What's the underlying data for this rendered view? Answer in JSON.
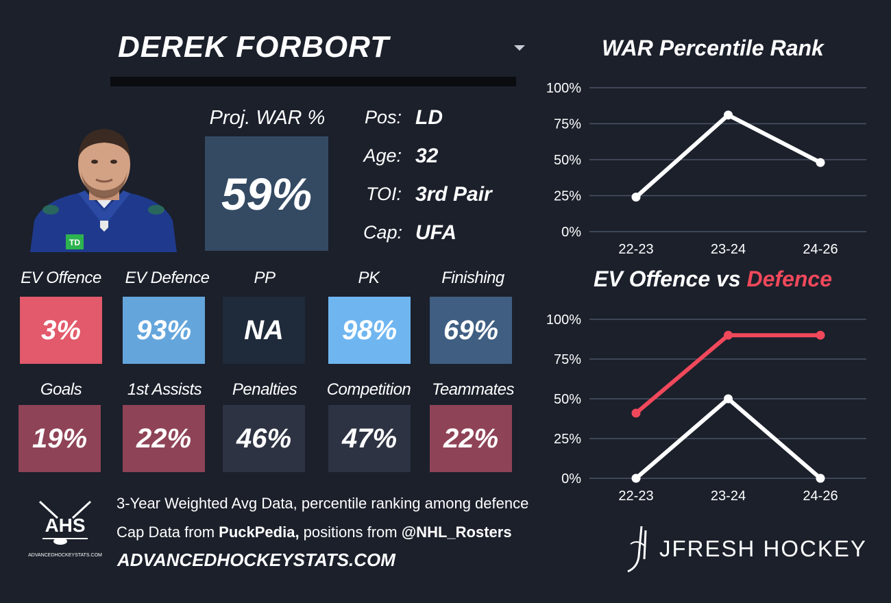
{
  "player": {
    "name": "DEREK FORBORT"
  },
  "projected_war": {
    "label": "Proj. WAR %",
    "value": "59%",
    "color": "#344a63"
  },
  "info": [
    {
      "key": "Pos:",
      "value": "LD"
    },
    {
      "key": "Age:",
      "value": "32"
    },
    {
      "key": "TOI:",
      "value": "3rd Pair"
    },
    {
      "key": "Cap:",
      "value": "UFA"
    }
  ],
  "stats_row1": [
    {
      "label": "EV Offence",
      "value": "3%",
      "color": "#e25a6b"
    },
    {
      "label": "EV Defence",
      "value": "93%",
      "color": "#64a6dc"
    },
    {
      "label": "PP",
      "value": "NA",
      "color": "#1f2a3a"
    },
    {
      "label": "PK",
      "value": "98%",
      "color": "#6fb6f1"
    },
    {
      "label": "Finishing",
      "value": "69%",
      "color": "#3f5e82"
    }
  ],
  "stats_row2": [
    {
      "label": "Goals",
      "value": "19%",
      "color": "#8f4356"
    },
    {
      "label": "1st Assists",
      "value": "22%",
      "color": "#8f4356"
    },
    {
      "label": "Penalties",
      "value": "46%",
      "color": "#2d3343"
    },
    {
      "label": "Competition",
      "value": "47%",
      "color": "#2d3343"
    },
    {
      "label": "Teammates",
      "value": "22%",
      "color": "#8f4356"
    }
  ],
  "footer": {
    "line1": "3-Year Weighted Avg Data, percentile ranking among defence",
    "line2_prefix": "Cap Data from ",
    "line2_source1": "PuckPedia,",
    "line2_middle": " positions from ",
    "line2_source2": "@NHL_Rosters",
    "site": "ADVANCEDHOCKEYSTATS.COM",
    "logo_text": "AHS",
    "logo_subtext": "ADVANCEDHOCKEYSTATS.COM"
  },
  "brand": {
    "name": "JFRESH HOCKEY"
  },
  "chart_data": [
    {
      "type": "line",
      "title": "WAR Percentile Rank",
      "categories": [
        "22-23",
        "23-24",
        "24-26"
      ],
      "series": [
        {
          "values": [
            24,
            81,
            48
          ],
          "color": "#ffffff"
        }
      ],
      "ylim": [
        0,
        100
      ],
      "yticks": [
        "0%",
        "25%",
        "50%",
        "75%",
        "100%"
      ],
      "grid": true
    },
    {
      "type": "line",
      "title_parts": [
        "EV Offence vs ",
        "Defence"
      ],
      "categories": [
        "22-23",
        "23-24",
        "24-26"
      ],
      "series": [
        {
          "name": "EV Offence",
          "values": [
            0,
            50,
            0
          ],
          "color": "#ffffff"
        },
        {
          "name": "Defence",
          "values": [
            41,
            90,
            90
          ],
          "color": "#f1485b"
        }
      ],
      "ylim": [
        0,
        100
      ],
      "yticks": [
        "0%",
        "25%",
        "50%",
        "75%",
        "100%"
      ],
      "grid": true
    }
  ]
}
